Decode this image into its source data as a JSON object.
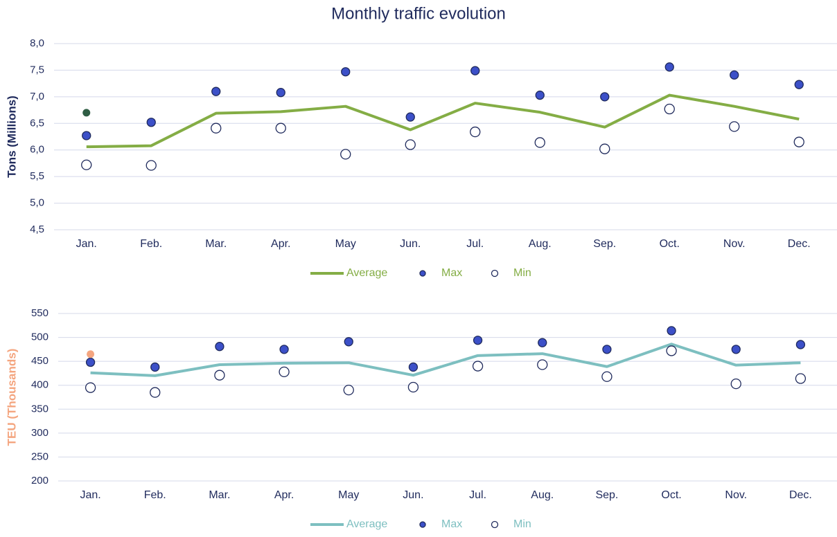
{
  "title": "Monthly traffic evolution",
  "chart_data": [
    {
      "type": "line",
      "ylabel": "Tons (Millions)",
      "ylabel_color": "#1f2a5c",
      "categories": [
        "Jan.",
        "Feb.",
        "Mar.",
        "Apr.",
        "May",
        "Jun.",
        "Jul.",
        "Aug.",
        "Sep.",
        "Oct.",
        "Nov.",
        "Dec."
      ],
      "ylim": [
        4.5,
        8.0
      ],
      "yticks": [
        {
          "value": 4.5,
          "label": "4,5"
        },
        {
          "value": 5.0,
          "label": "5,0"
        },
        {
          "value": 5.5,
          "label": "5,5"
        },
        {
          "value": 6.0,
          "label": "6,0"
        },
        {
          "value": 6.5,
          "label": "6,5"
        },
        {
          "value": 7.0,
          "label": "7,0"
        },
        {
          "value": 7.5,
          "label": "7,5"
        },
        {
          "value": 8.0,
          "label": "8,0"
        }
      ],
      "grid": true,
      "series": [
        {
          "name": "Average",
          "style": "line",
          "color": "#84ad45",
          "values": [
            6.06,
            6.08,
            6.69,
            6.72,
            6.82,
            6.38,
            6.88,
            6.71,
            6.43,
            7.03,
            6.82,
            6.58
          ]
        },
        {
          "name": "Max",
          "style": "filled-marker",
          "color": "#3c50c8",
          "values": [
            6.27,
            6.52,
            7.1,
            7.08,
            7.47,
            6.62,
            7.49,
            7.03,
            7.0,
            7.56,
            7.41,
            7.23
          ]
        },
        {
          "name": "Min",
          "style": "hollow-marker",
          "color": "#1f2a5c",
          "values": [
            5.72,
            5.71,
            6.41,
            6.41,
            5.92,
            6.1,
            6.34,
            6.14,
            6.02,
            6.77,
            6.44,
            6.15
          ]
        }
      ],
      "extra_point": {
        "category": "Jan.",
        "value": 6.7,
        "color": "#2f5d44"
      }
    },
    {
      "type": "line",
      "ylabel": "TEU (Thousands)",
      "ylabel_color": "#f4a57f",
      "categories": [
        "Jan.",
        "Feb.",
        "Mar.",
        "Apr.",
        "May",
        "Jun.",
        "Jul.",
        "Aug.",
        "Sep.",
        "Oct.",
        "Nov.",
        "Dec."
      ],
      "ylim": [
        200,
        550
      ],
      "yticks": [
        200,
        250,
        300,
        350,
        400,
        450,
        500,
        550
      ],
      "grid": true,
      "series": [
        {
          "name": "Average",
          "style": "line",
          "color": "#7dbfc0",
          "values": [
            426,
            420,
            443,
            446,
            447,
            421,
            462,
            466,
            439,
            486,
            442,
            447
          ]
        },
        {
          "name": "Max",
          "style": "filled-marker",
          "color": "#3c50c8",
          "values": [
            448,
            438,
            481,
            475,
            491,
            438,
            494,
            489,
            475,
            514,
            475,
            485
          ]
        },
        {
          "name": "Min",
          "style": "hollow-marker",
          "color": "#1f2a5c",
          "values": [
            395,
            385,
            421,
            428,
            390,
            396,
            440,
            443,
            418,
            472,
            403,
            414
          ]
        }
      ],
      "extra_point": {
        "category": "Jan.",
        "value": 465,
        "color": "#f4a57f"
      }
    }
  ]
}
